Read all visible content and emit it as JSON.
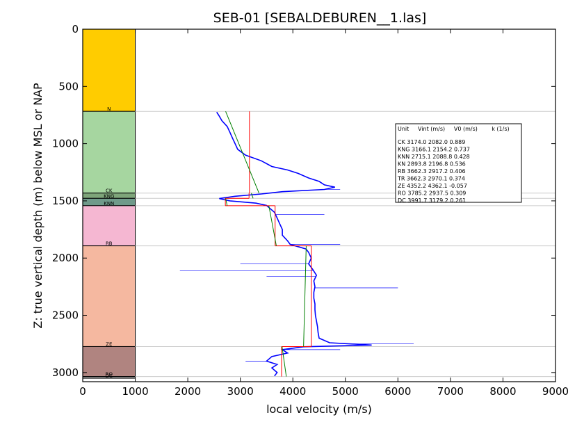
{
  "chart_data": {
    "type": "line",
    "title": "SEB-01 [SEBALDEBUREN__1.las]",
    "xlabel": "local velocity (m/s)",
    "ylabel": "Z: true vertical depth (m) below MSL or NAP",
    "xlim": [
      0,
      9000
    ],
    "ylim": [
      3080,
      0
    ],
    "x_ticks": [
      "0",
      "1000",
      "2000",
      "3000",
      "4000",
      "5000",
      "6000",
      "7000",
      "8000",
      "9000"
    ],
    "y_ticks": [
      "0",
      "500",
      "1000",
      "1500",
      "2000",
      "2500",
      "3000"
    ],
    "x_tick_values": [
      0,
      1000,
      2000,
      3000,
      4000,
      5000,
      6000,
      7000,
      8000,
      9000
    ],
    "y_tick_values": [
      0,
      500,
      1000,
      1500,
      2000,
      2500,
      3000
    ],
    "colors": {
      "log": "#0000ff",
      "interval": "#ff0000",
      "model": "#008000",
      "boundary": "#cccccc"
    },
    "units": [
      {
        "name": "N",
        "top": 0,
        "base": 718,
        "color": "#ffcc00",
        "label": "N"
      },
      {
        "name": "CK",
        "top": 718,
        "base": 1432,
        "color": "#a6d6a0",
        "label": "CK"
      },
      {
        "name": "KNG",
        "top": 1432,
        "base": 1478,
        "color": "#7ea57a",
        "label": "KNG"
      },
      {
        "name": "KNN",
        "top": 1478,
        "base": 1542,
        "color": "#6f9a8a",
        "label": "KNN"
      },
      {
        "name": "RB",
        "top": 1542,
        "base": 1893,
        "color": "#f5b7d2",
        "label": "RB"
      },
      {
        "name": "ZE",
        "top": 1893,
        "base": 2773,
        "color": "#f5b8a0",
        "label": "ZE"
      },
      {
        "name": "RO",
        "top": 2773,
        "base": 3035,
        "color": "#b08480",
        "label": "RO"
      },
      {
        "name": "DC",
        "top": 3035,
        "base": 3050,
        "color": "#9a9a9a",
        "label": "DC"
      }
    ],
    "intervals": [
      {
        "name": "CK",
        "top": 718,
        "base": 1432,
        "vint": 3174.0,
        "v0": 2082.0,
        "k": 0.889
      },
      {
        "name": "KNG",
        "top": 1432,
        "base": 1478,
        "vint": 3166.1,
        "v0": 2154.2,
        "k": 0.737
      },
      {
        "name": "KNN",
        "top": 1478,
        "base": 1542,
        "vint": 2715.1,
        "v0": 2088.8,
        "k": 0.428
      },
      {
        "name": "RB",
        "top": 1542,
        "base": 1893,
        "vint": 3662.3,
        "v0": 2917.2,
        "k": 0.406
      },
      {
        "name": "ZE",
        "top": 1893,
        "base": 2773,
        "vint": 4352.2,
        "v0": 4362.1,
        "k": -0.057
      },
      {
        "name": "RO",
        "top": 2773,
        "base": 3035,
        "vint": 3785.2,
        "v0": 2937.5,
        "k": 0.309
      }
    ],
    "velocity_log": {
      "depth": [
        725,
        760,
        800,
        850,
        900,
        950,
        1000,
        1050,
        1100,
        1150,
        1200,
        1230,
        1260,
        1300,
        1330,
        1360,
        1380,
        1400,
        1420,
        1440,
        1460,
        1480,
        1500,
        1520,
        1540,
        1560,
        1600,
        1650,
        1700,
        1750,
        1800,
        1850,
        1880,
        1900,
        1920,
        1950,
        2000,
        2050,
        2100,
        2150,
        2200,
        2250,
        2300,
        2350,
        2400,
        2450,
        2500,
        2550,
        2600,
        2650,
        2700,
        2740,
        2760,
        2775,
        2800,
        2830,
        2860,
        2900,
        2930,
        2960,
        3000,
        3030
      ],
      "velocity": [
        2550,
        2600,
        2650,
        2750,
        2800,
        2850,
        2900,
        2950,
        3100,
        3400,
        3600,
        3900,
        4100,
        4300,
        4500,
        4600,
        4800,
        4600,
        3800,
        3400,
        2900,
        2600,
        2800,
        3300,
        3500,
        3550,
        3650,
        3700,
        3750,
        3800,
        3800,
        3900,
        3950,
        4100,
        4250,
        4300,
        4350,
        4300,
        4380,
        4450,
        4400,
        4420,
        4400,
        4400,
        4420,
        4420,
        4430,
        4450,
        4470,
        4480,
        4500,
        4700,
        5500,
        4200,
        3800,
        3900,
        3600,
        3500,
        3700,
        3600,
        3700,
        3650
      ]
    },
    "velocity_log_spikes": [
      {
        "depth": 1400,
        "velocity": 4900
      },
      {
        "depth": 1620,
        "velocity": 4600
      },
      {
        "depth": 1880,
        "velocity": 4900
      },
      {
        "depth": 2110,
        "velocity": 1850
      },
      {
        "depth": 2050,
        "velocity": 3000
      },
      {
        "depth": 2160,
        "velocity": 3500
      },
      {
        "depth": 2260,
        "velocity": 6000
      },
      {
        "depth": 2750,
        "velocity": 6300
      },
      {
        "depth": 2800,
        "velocity": 4900
      },
      {
        "depth": 2900,
        "velocity": 3100
      }
    ],
    "legend": {
      "position": "top-right",
      "header": "Unit     Vint (m/s)     V0 (m/s)        k (1/s)",
      "rows": [
        "CK      3174.0  2082.0  0.889",
        "KNG      3166.1  2154.2  0.737",
        "KNN      2715.1  2088.8  0.428",
        "KN       2893.8  2196.8  0.536",
        "RB       3662.3  2917.2  0.406",
        "TR       3662.3  2970.1  0.374",
        "ZE       4352.2  4362.1  -0.057",
        "RO       3785.2  2937.5  0.309",
        "DC       3991.7  3179.2  0.261"
      ]
    }
  }
}
